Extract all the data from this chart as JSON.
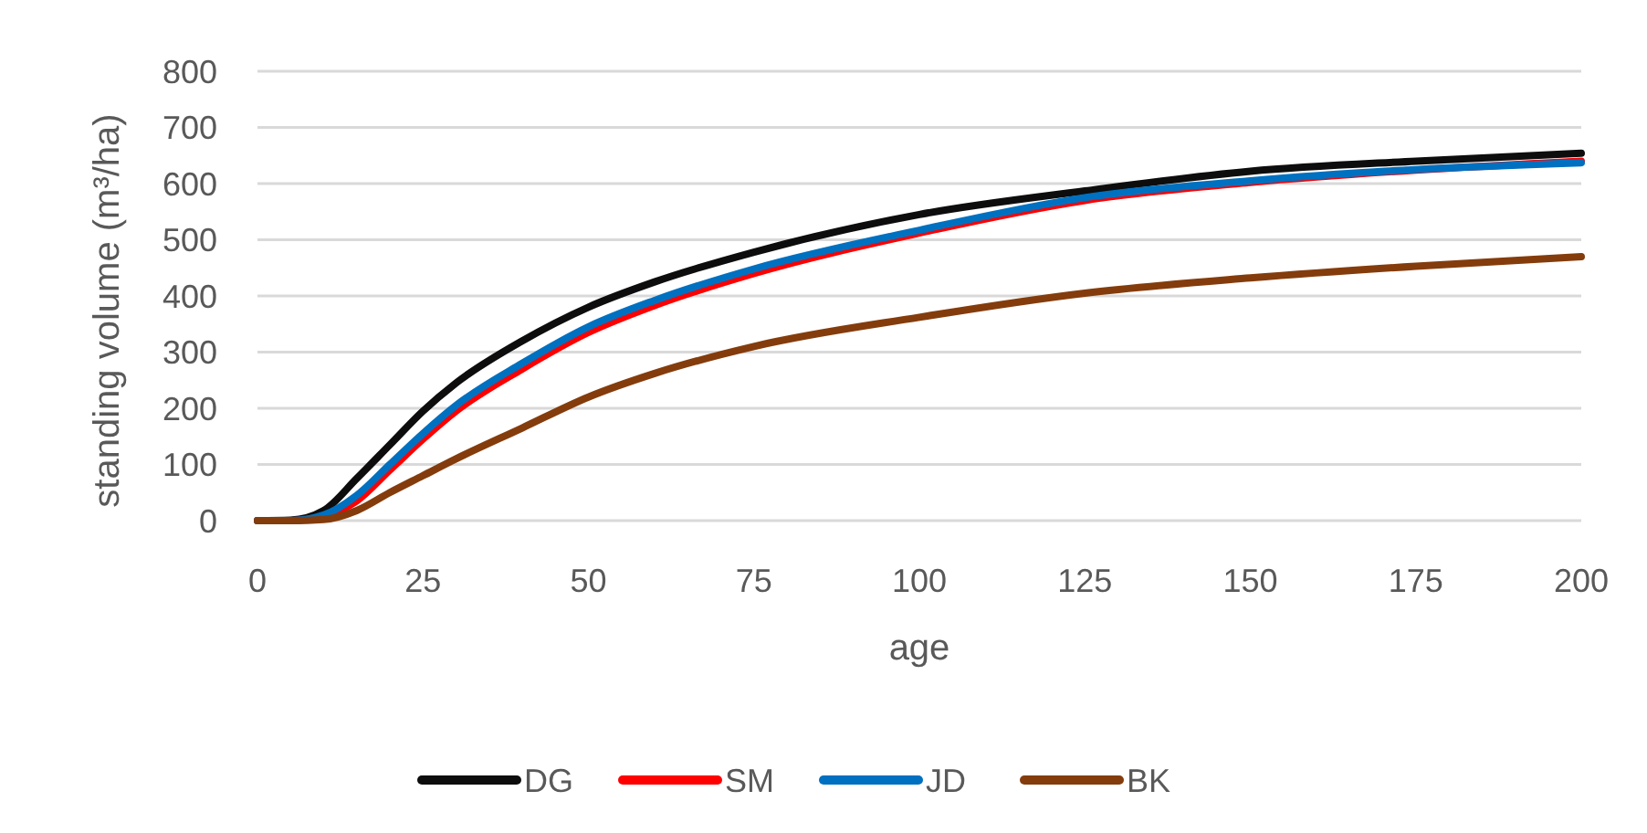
{
  "chart_data": {
    "type": "line",
    "xlabel": "age",
    "ylabel": "standing volume (m³/ha)",
    "x": [
      0,
      5,
      10,
      15,
      20,
      25,
      30,
      40,
      50,
      60,
      75,
      100,
      125,
      150,
      175,
      200
    ],
    "series": [
      {
        "name": "DG",
        "color": "#0d0d0d",
        "values": [
          0,
          1,
          18,
          75,
          135,
          195,
          245,
          320,
          380,
          425,
          478,
          545,
          587,
          622,
          640,
          654
        ]
      },
      {
        "name": "SM",
        "color": "#ff0000",
        "values": [
          0,
          0,
          8,
          35,
          90,
          145,
          195,
          270,
          335,
          383,
          440,
          512,
          570,
          602,
          624,
          640
        ]
      },
      {
        "name": "JD",
        "color": "#0070c0",
        "values": [
          0,
          0,
          10,
          45,
          100,
          155,
          205,
          280,
          345,
          392,
          448,
          517,
          575,
          605,
          625,
          637
        ]
      },
      {
        "name": "BK",
        "color": "#843c0c",
        "values": [
          0,
          0,
          2,
          18,
          50,
          80,
          110,
          165,
          220,
          262,
          310,
          362,
          405,
          432,
          453,
          470
        ]
      }
    ],
    "xlim": [
      0,
      200
    ],
    "xticks": [
      0,
      25,
      50,
      75,
      100,
      125,
      150,
      175,
      200
    ],
    "ylim": [
      0,
      800
    ],
    "yticks": [
      0,
      100,
      200,
      300,
      400,
      500,
      600,
      700,
      800
    ],
    "grid": "y",
    "legend": "bottom",
    "line_style": "solid",
    "marker": "none"
  }
}
